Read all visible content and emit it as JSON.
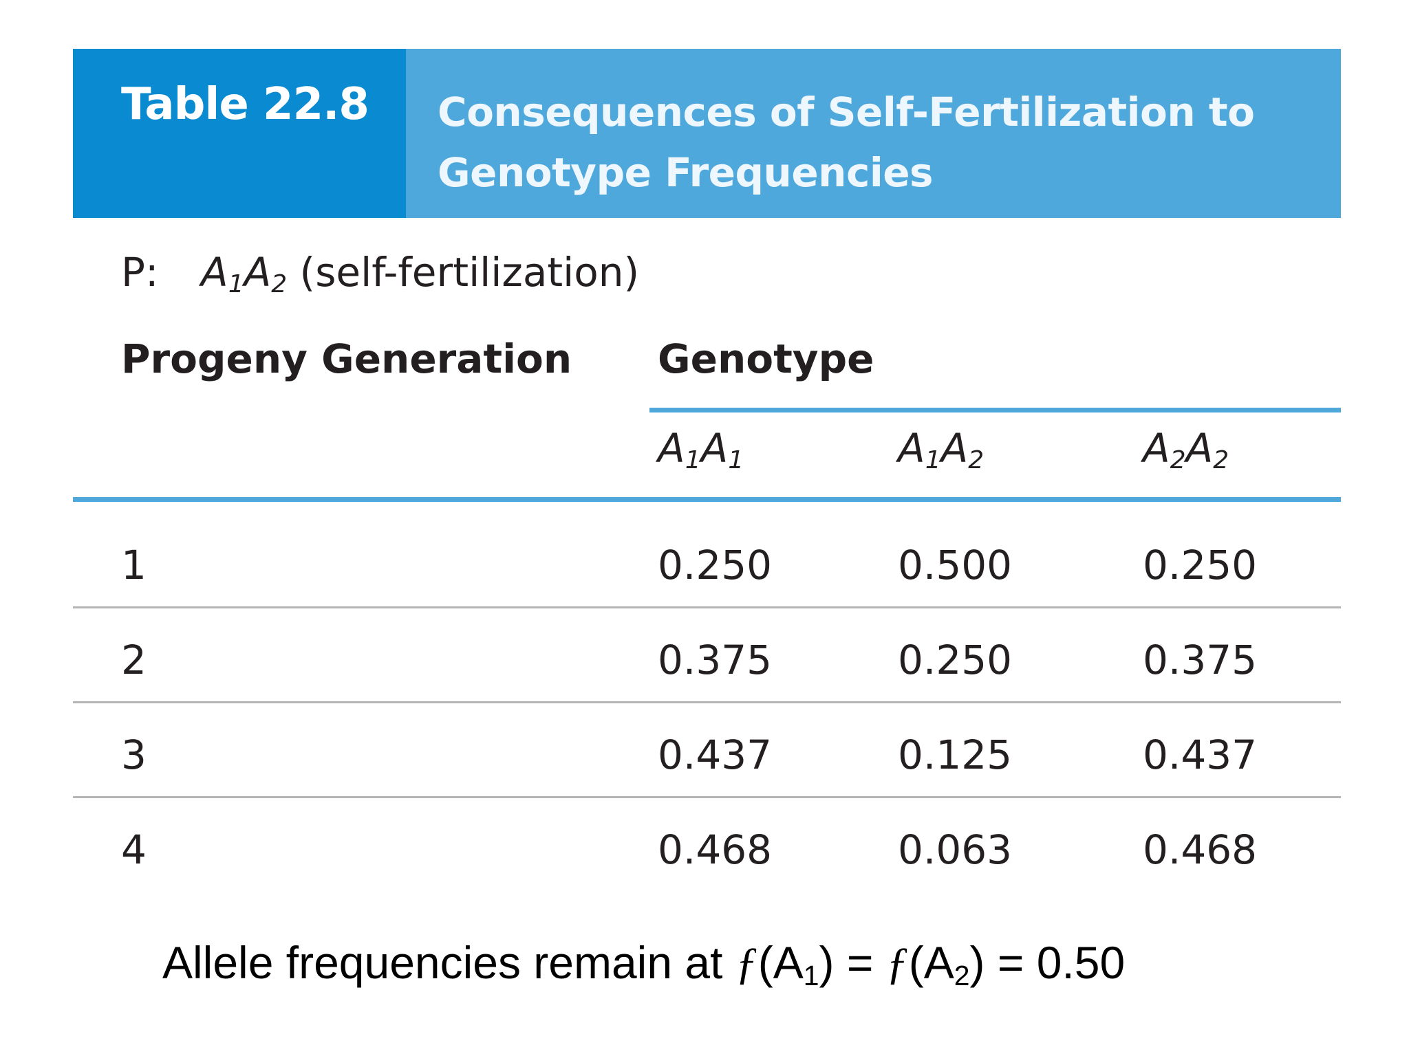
{
  "header": {
    "table_number": "Table 22.8",
    "title": "Consequences of Self-Fertilization to Genotype Frequencies"
  },
  "parental": {
    "label": "P:",
    "genotype_a": "A",
    "genotype_a_sub": "1",
    "genotype_b": "A",
    "genotype_b_sub": "2",
    "note": " (self-fertilization)"
  },
  "columns": {
    "progeny": "Progeny Generation",
    "genotype": "Genotype",
    "genotypes": [
      {
        "a": "A",
        "a_sub": "1",
        "b": "A",
        "b_sub": "1"
      },
      {
        "a": "A",
        "a_sub": "1",
        "b": "A",
        "b_sub": "2"
      },
      {
        "a": "A",
        "a_sub": "2",
        "b": "A",
        "b_sub": "2"
      }
    ]
  },
  "rows": [
    {
      "generation": "1",
      "a1a1": "0.250",
      "a1a2": "0.500",
      "a2a2": "0.250"
    },
    {
      "generation": "2",
      "a1a1": "0.375",
      "a1a2": "0.250",
      "a2a2": "0.375"
    },
    {
      "generation": "3",
      "a1a1": "0.437",
      "a1a2": "0.125",
      "a2a2": "0.437"
    },
    {
      "generation": "4",
      "a1a1": "0.468",
      "a1a2": "0.063",
      "a2a2": "0.468"
    }
  ],
  "footnote": {
    "prefix": "Allele frequencies remain at ",
    "f1": "ƒ",
    "open1": "(A",
    "sub1": "1",
    "close1": ") = ",
    "f2": "ƒ",
    "open2": "(A",
    "sub2": "2",
    "close2": ") = 0.50"
  },
  "colors": {
    "header_dark": "#0a8ad1",
    "header_light": "#4ea8db",
    "rule_gray": "#b5b5b5"
  }
}
